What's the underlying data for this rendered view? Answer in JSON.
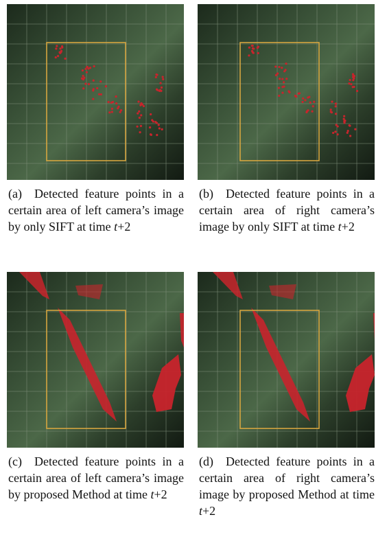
{
  "figures": [
    {
      "label": "(a)",
      "text": "Detected feature points in a certain area of left camera’s image by only SIFT at time",
      "var": "t",
      "suffix": "+2"
    },
    {
      "label": "(b)",
      "text": "Detected feature points in a certain area of right camera’s image by only SIFT at time",
      "var": "t",
      "suffix": "+2"
    },
    {
      "label": "(c)",
      "text": "Detected feature points in a certain area of left camera’s image by proposed Method at time",
      "var": "t",
      "suffix": "+2"
    },
    {
      "label": "(d)",
      "text": "Detected feature points in a certain area of right camera’s image by proposed Method at time",
      "var": "t",
      "suffix": "+2"
    }
  ]
}
